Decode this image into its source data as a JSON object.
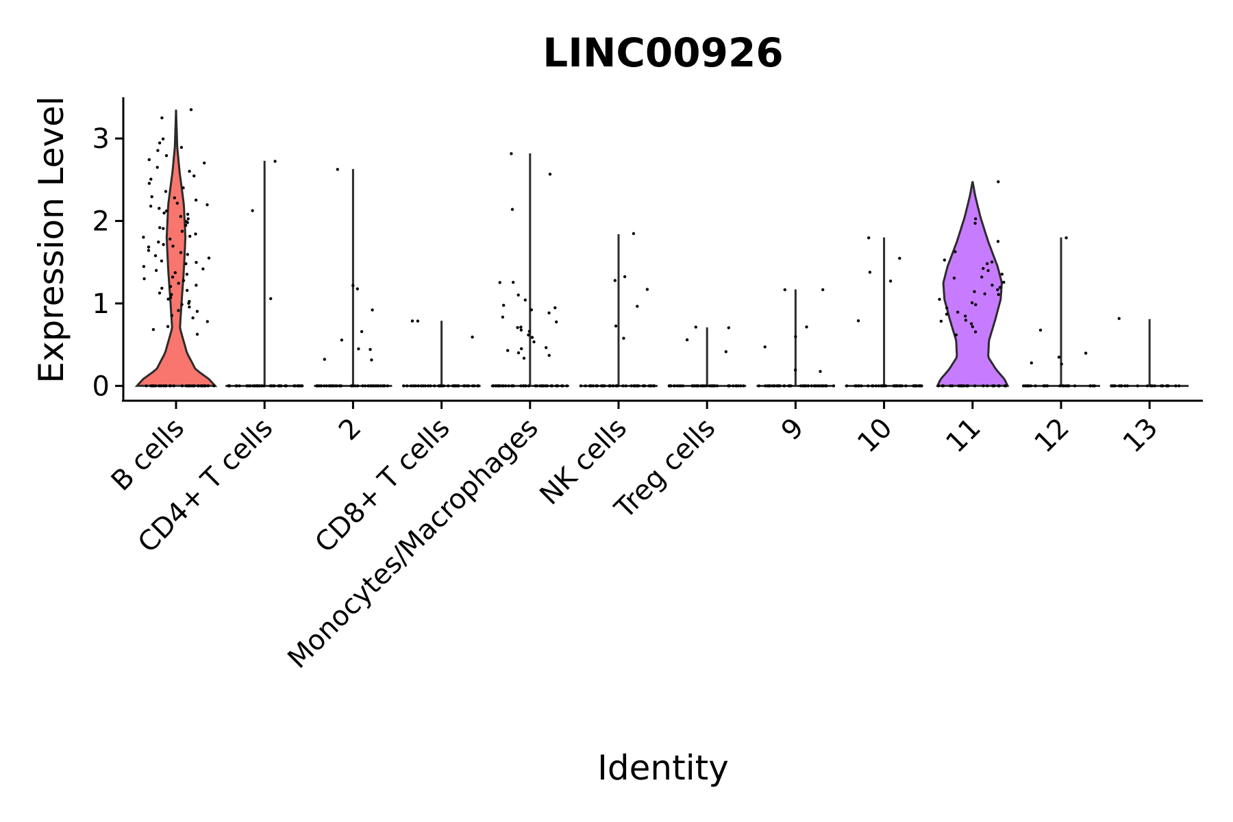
{
  "chart_data": {
    "type": "violin",
    "title": "LINC00926",
    "xlabel": "Identity",
    "ylabel": "Expression Level",
    "ylim": [
      -0.18,
      3.5
    ],
    "yticks": [
      0,
      1,
      2,
      3
    ],
    "grid": false,
    "legend": "none",
    "categories": [
      "B cells",
      "CD4+ T cells",
      "2",
      "CD8+ T cells",
      "Monocytes/Macrophages",
      "NK cells",
      "Treg cells",
      "9",
      "10",
      "11",
      "12",
      "13"
    ],
    "series": [
      {
        "category": "B cells",
        "color": "#F8766D",
        "max": 3.35,
        "halfwidth_profile": [
          [
            0,
            1.0
          ],
          [
            0.08,
            0.85
          ],
          [
            0.2,
            0.5
          ],
          [
            0.4,
            0.28
          ],
          [
            0.7,
            0.1
          ],
          [
            1.0,
            0.14
          ],
          [
            1.4,
            0.2
          ],
          [
            1.8,
            0.24
          ],
          [
            2.2,
            0.2
          ],
          [
            2.6,
            0.09
          ],
          [
            2.9,
            0.03
          ],
          [
            3.35,
            0.0
          ]
        ],
        "points_zero": 30,
        "points": [
          0.62,
          0.68,
          0.72,
          0.78,
          0.82,
          0.86,
          0.9,
          0.92,
          0.95,
          0.98,
          1.0,
          1.02,
          1.05,
          1.08,
          1.1,
          1.12,
          1.15,
          1.18,
          1.2,
          1.22,
          1.25,
          1.28,
          1.3,
          1.32,
          1.35,
          1.38,
          1.4,
          1.42,
          1.45,
          1.48,
          1.5,
          1.52,
          1.55,
          1.58,
          1.6,
          1.62,
          1.65,
          1.68,
          1.7,
          1.72,
          1.75,
          1.78,
          1.8,
          1.82,
          1.85,
          1.88,
          1.9,
          1.92,
          1.95,
          1.98,
          2.0,
          2.02,
          2.05,
          2.08,
          2.1,
          2.12,
          2.15,
          2.18,
          2.2,
          2.22,
          2.25,
          2.28,
          2.3,
          2.35,
          2.4,
          2.45,
          2.5,
          2.55,
          2.6,
          2.65,
          2.7,
          2.75,
          2.8,
          2.85,
          2.9,
          2.95,
          3.0,
          3.25,
          3.35
        ]
      },
      {
        "category": "CD4+ T cells",
        "color": "#E58700",
        "max": 2.73,
        "points_zero": 40,
        "points": [
          2.73,
          2.13,
          1.06
        ]
      },
      {
        "category": "2",
        "color": "#C99800",
        "max": 2.63,
        "points_zero": 40,
        "points": [
          2.63,
          1.22,
          1.17,
          0.92,
          0.66,
          0.55,
          0.45,
          0.44,
          0.33,
          0.32
        ]
      },
      {
        "category": "CD8+ T cells",
        "color": "#A3A500",
        "max": 0.79,
        "points_zero": 40,
        "points": [
          0.79,
          0.78,
          0.59
        ]
      },
      {
        "category": "Monocytes/Macrophages",
        "color": "#6BB100",
        "max": 2.82,
        "points_zero": 40,
        "points": [
          2.82,
          2.57,
          2.14,
          1.26,
          1.25,
          1.1,
          1.04,
          0.97,
          0.94,
          0.93,
          0.88,
          0.83,
          0.78,
          0.72,
          0.7,
          0.68,
          0.66,
          0.62,
          0.58,
          0.54,
          0.47,
          0.45,
          0.43,
          0.4,
          0.37,
          0.34
        ]
      },
      {
        "category": "NK cells",
        "color": "#00BA38",
        "max": 1.84,
        "points_zero": 40,
        "points": [
          1.84,
          1.32,
          1.27,
          1.17,
          0.97,
          0.73,
          0.57
        ]
      },
      {
        "category": "Treg cells",
        "color": "#00BF7D",
        "max": 0.71,
        "points_zero": 40,
        "points": [
          0.71,
          0.7,
          0.56,
          0.42
        ]
      },
      {
        "category": "9",
        "color": "#00C0AF",
        "max": 1.17,
        "points_zero": 40,
        "points": [
          1.17,
          1.16,
          0.72,
          0.6,
          0.47,
          0.2,
          0.18
        ]
      },
      {
        "category": "10",
        "color": "#00BCD8",
        "max": 1.8,
        "points_zero": 40,
        "points": [
          1.8,
          1.54,
          1.38,
          1.27,
          0.79
        ]
      },
      {
        "category": "11",
        "color": "#C77CFF",
        "max": 2.48,
        "halfwidth_profile": [
          [
            0,
            0.9
          ],
          [
            0.08,
            0.82
          ],
          [
            0.2,
            0.6
          ],
          [
            0.35,
            0.4
          ],
          [
            0.55,
            0.42
          ],
          [
            0.8,
            0.58
          ],
          [
            1.05,
            0.72
          ],
          [
            1.25,
            0.75
          ],
          [
            1.45,
            0.64
          ],
          [
            1.75,
            0.4
          ],
          [
            2.05,
            0.2
          ],
          [
            2.3,
            0.07
          ],
          [
            2.48,
            0.0
          ]
        ],
        "points_zero": 22,
        "points": [
          2.48,
          2.03,
          1.98,
          1.75,
          1.62,
          1.52,
          1.5,
          1.48,
          1.42,
          1.4,
          1.35,
          1.32,
          1.3,
          1.26,
          1.22,
          1.2,
          1.17,
          1.15,
          1.12,
          1.1,
          1.05,
          1.0,
          0.98,
          0.95,
          0.9,
          0.87,
          0.84,
          0.8,
          0.78,
          0.75,
          0.72,
          0.65,
          0.62
        ]
      },
      {
        "category": "12",
        "color": "#FF61C3",
        "max": 1.8,
        "points_zero": 24,
        "points": [
          1.8,
          0.68,
          0.39,
          0.35,
          0.28,
          0.27
        ]
      },
      {
        "category": "13",
        "color": "#FF67A4",
        "max": 0.81,
        "points_zero": 22,
        "points": [
          0.81
        ]
      }
    ]
  }
}
